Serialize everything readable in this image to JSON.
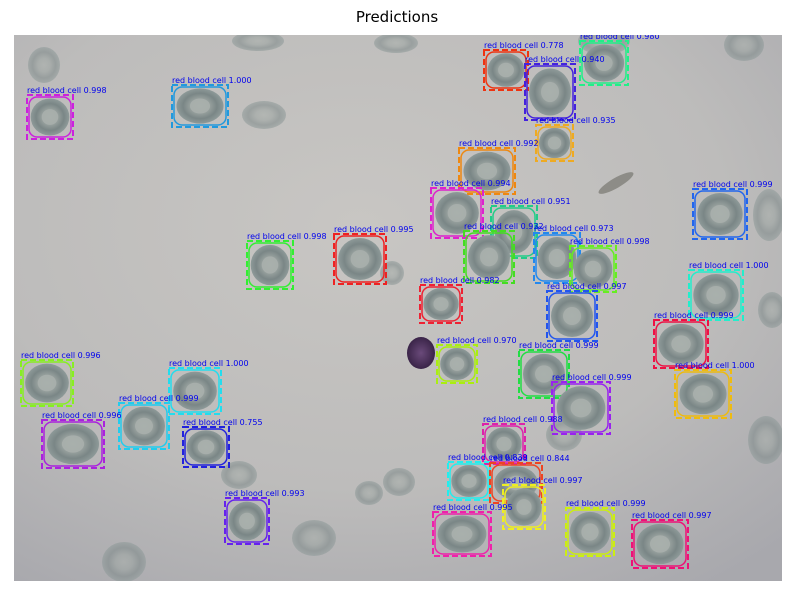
{
  "title": "Predictions",
  "detections": [
    {
      "label": "red blood cell 0.778",
      "color": "#ee3311"
    },
    {
      "label": "red blood cell 0.980",
      "color": "#22ee88"
    },
    {
      "label": "red blood cell 0.940",
      "color": "#4422dd"
    },
    {
      "label": "red blood cell 0.998",
      "color": "#cc22dd"
    },
    {
      "label": "red blood cell 1.000",
      "color": "#2299dd"
    },
    {
      "label": "red blood cell 0.935",
      "color": "#eeaa22"
    },
    {
      "label": "red blood cell 0.992",
      "color": "#ee8811"
    },
    {
      "label": "red blood cell 0.994",
      "color": "#dd22cc"
    },
    {
      "label": "red blood cell 0.999",
      "color": "#2266ee"
    },
    {
      "label": "red blood cell 0.951",
      "color": "#22cc88"
    },
    {
      "label": "red blood cell 0.998",
      "color": "#33ee33"
    },
    {
      "label": "red blood cell 0.995",
      "color": "#ee2222"
    },
    {
      "label": "red blood cell 0.932",
      "color": "#44dd22"
    },
    {
      "label": "red blood cell 0.973",
      "color": "#2288ee"
    },
    {
      "label": "red blood cell 0.998",
      "color": "#66ee22"
    },
    {
      "label": "red blood cell 1.000",
      "color": "#22eecc"
    },
    {
      "label": "red blood cell 0.982",
      "color": "#ee2233"
    },
    {
      "label": "red blood cell 0.997",
      "color": "#2255ee"
    },
    {
      "label": "red blood cell 0.999",
      "color": "#ee1144"
    },
    {
      "label": "red blood cell 0.996",
      "color": "#88ee22"
    },
    {
      "label": "red blood cell 0.970",
      "color": "#aaee11"
    },
    {
      "label": "red blood cell 0.999",
      "color": "#22dd44"
    },
    {
      "label": "red blood cell 1.000",
      "color": "#22ddee"
    },
    {
      "label": "red blood cell 1.000",
      "color": "#eebb11"
    },
    {
      "label": "red blood cell 0.999",
      "color": "#22ccee"
    },
    {
      "label": "red blood cell 0.999",
      "color": "#9922ee"
    },
    {
      "label": "red blood cell 0.996",
      "color": "#aa22dd"
    },
    {
      "label": "red blood cell 0.755",
      "color": "#2222dd"
    },
    {
      "label": "red blood cell 0.988",
      "color": "#dd22aa"
    },
    {
      "label": "red blood cell 0.839",
      "color": "#22eeee"
    },
    {
      "label": "red blood cell 0.844",
      "color": "#ee4422"
    },
    {
      "label": "red blood cell 0.997",
      "color": "#eeee22"
    },
    {
      "label": "red blood cell 0.993",
      "color": "#6622ee"
    },
    {
      "label": "red blood cell 0.995",
      "color": "#ee22aa"
    },
    {
      "label": "red blood cell 0.999",
      "color": "#ccee11"
    },
    {
      "label": "red blood cell 0.997",
      "color": "#ee1177"
    }
  ]
}
